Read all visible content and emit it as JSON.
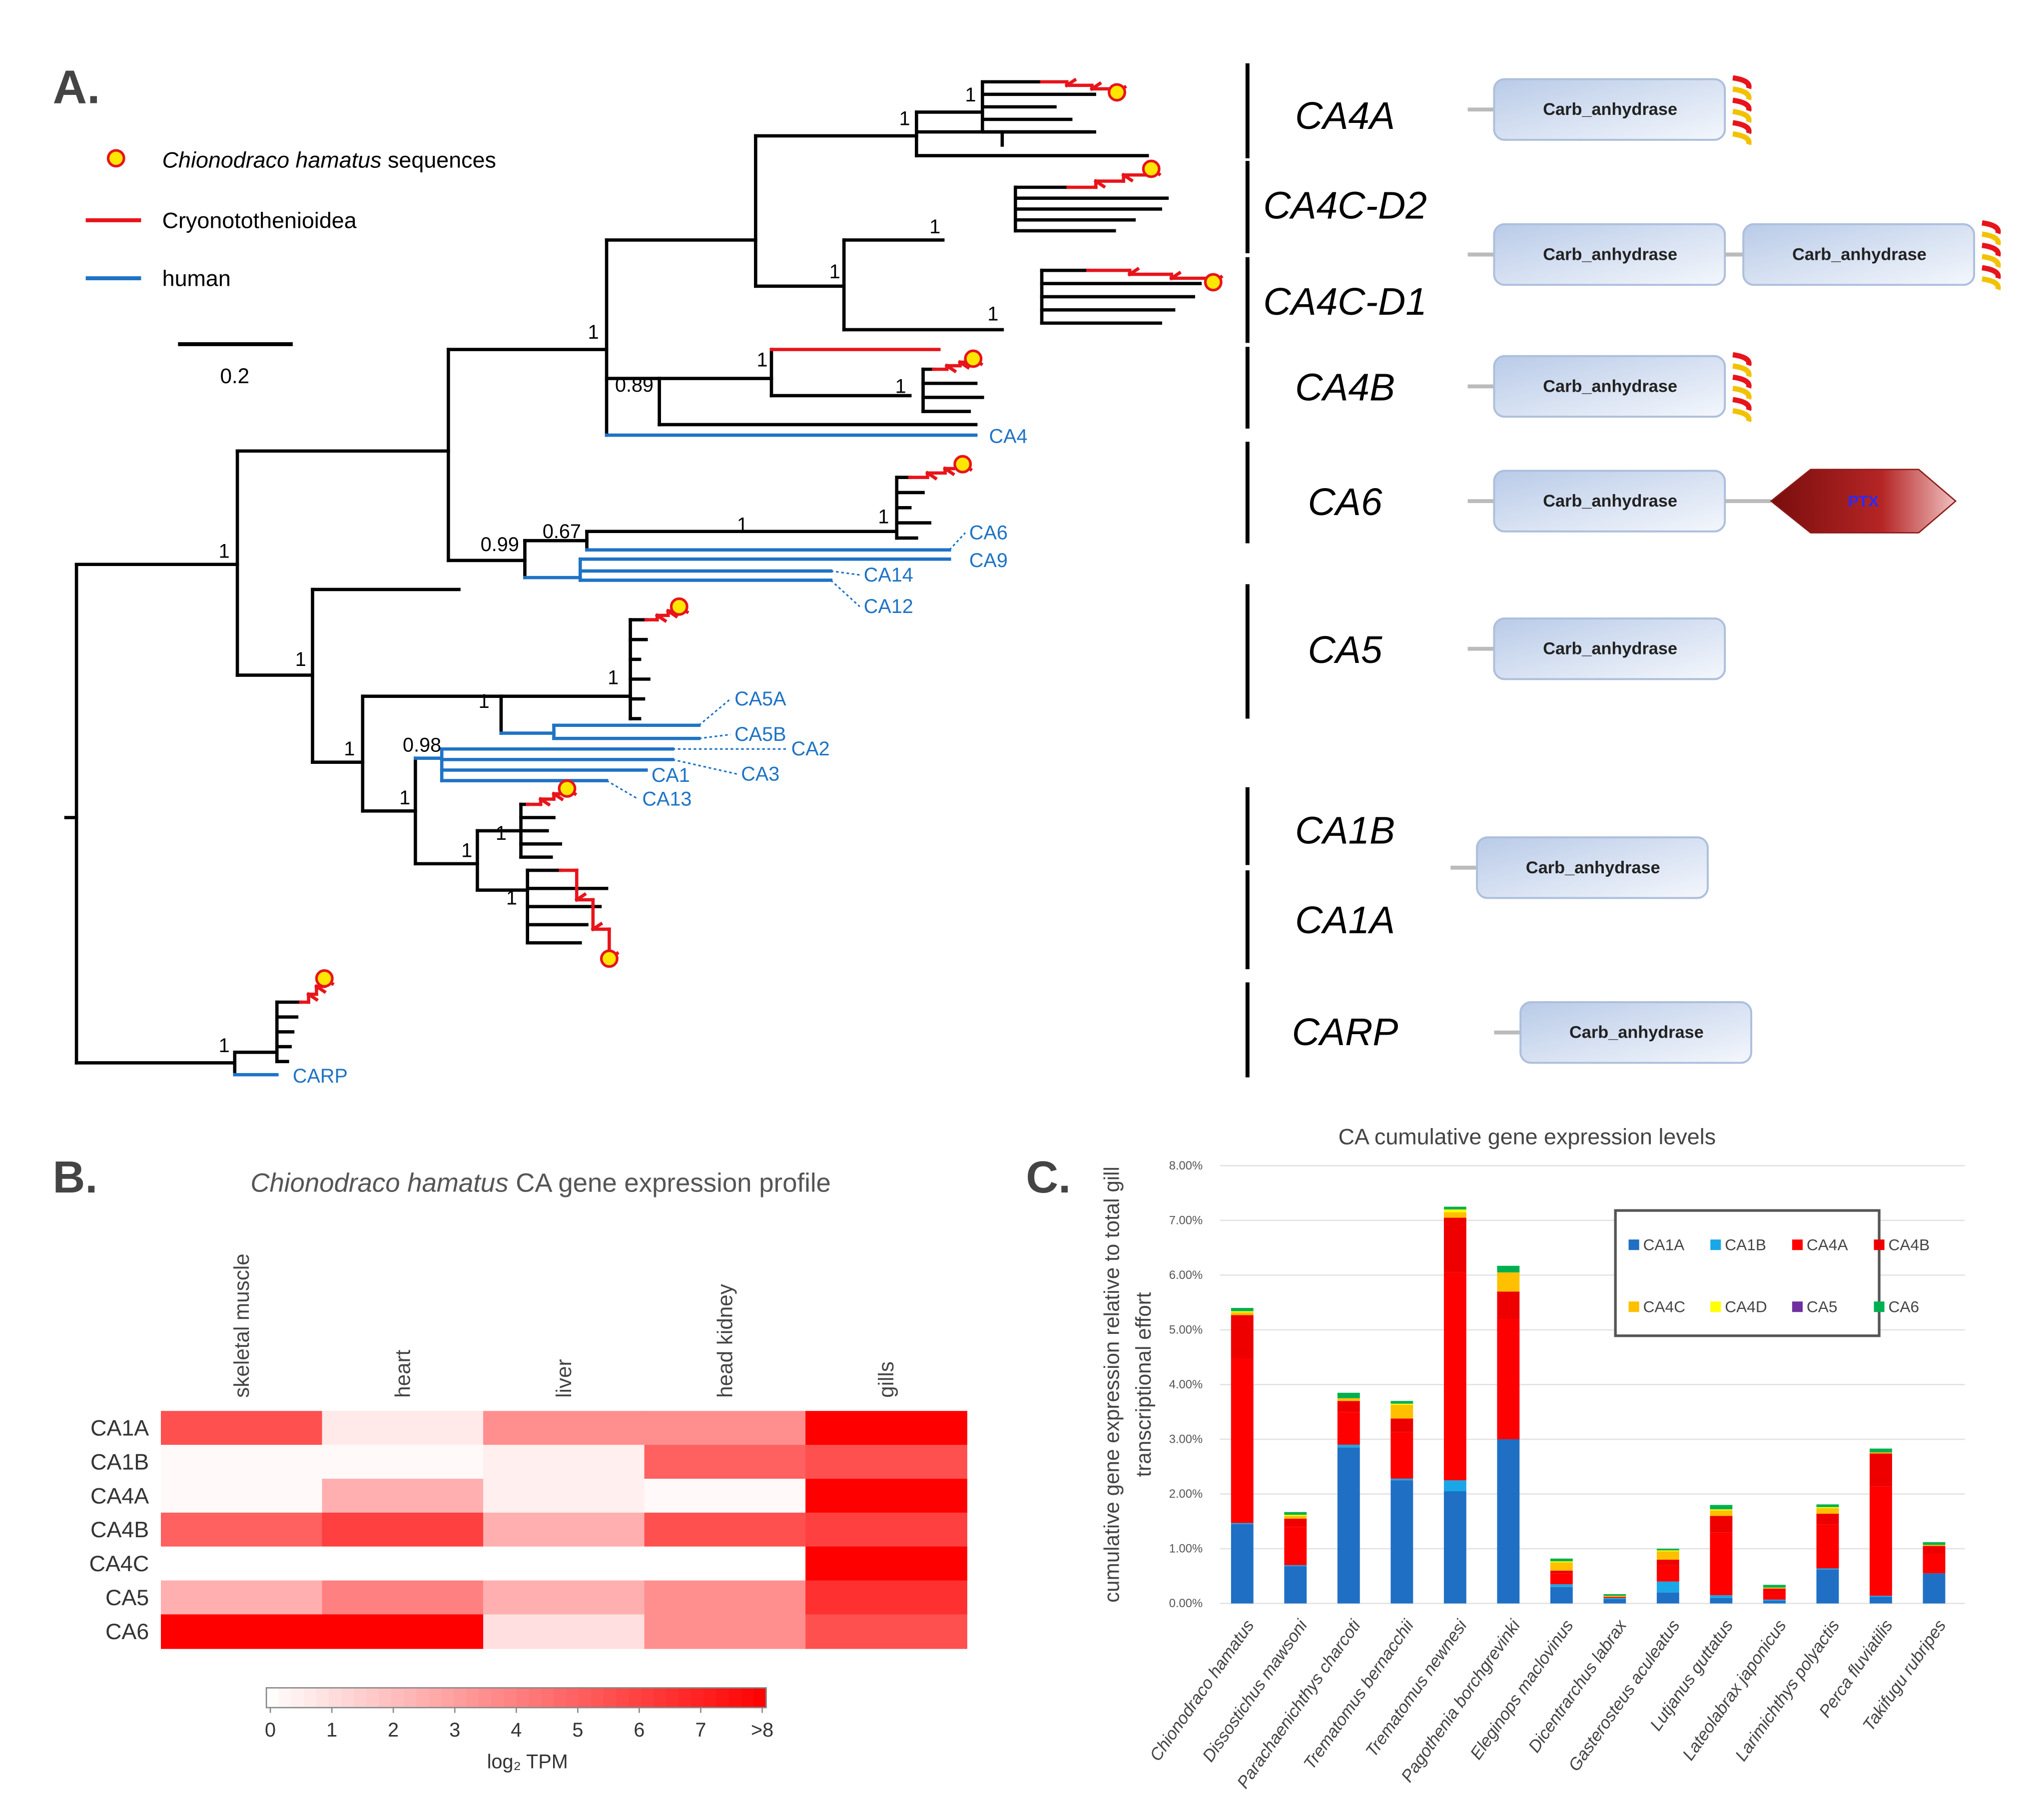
{
  "panel_a": {
    "label": "A.",
    "legend": {
      "species": "Chionodraco hamatus",
      "species_suffix": " sequences",
      "cryo": "Cryonotothenioidea",
      "human": "human"
    },
    "scale_label": "0.2",
    "colors": {
      "cryo": "#e8141b",
      "human": "#1e73c5",
      "dot": "#ffe600"
    },
    "supports": [
      1,
      1,
      1,
      0.89,
      1,
      1,
      1,
      1,
      1,
      1,
      1,
      0.99,
      0.67,
      1,
      1,
      1,
      1,
      1,
      0.98,
      1,
      1,
      1,
      1,
      1
    ],
    "human_leaves": [
      "CA4",
      "CA6",
      "CA9",
      "CA14",
      "CA12",
      "CA5A",
      "CA5B",
      "CA2",
      "CA3",
      "CA1",
      "CA13",
      "CARP"
    ],
    "clades": [
      "CA4A",
      "CA4C-D2",
      "CA4C-D1",
      "CA4B",
      "CA6",
      "CA5",
      "CA1B",
      "CA1A",
      "CARP"
    ],
    "architectures": [
      {
        "domains": [
          "Carb_anhydrase"
        ]
      },
      {
        "domains": [
          "Carb_anhydrase",
          "Carb_anhydrase"
        ]
      },
      {
        "domains": [
          "Carb_anhydrase"
        ]
      },
      {
        "domains": [
          "Carb_anhydrase",
          "PTX"
        ]
      },
      {
        "domains": [
          "Carb_anhydrase"
        ]
      },
      {
        "domains": [
          "Carb_anhydrase"
        ]
      },
      {
        "domains": [
          "Carb_anhydrase"
        ]
      }
    ]
  },
  "chart_data": [
    {
      "type": "heatmap",
      "label": "B.",
      "title_species": "Chionodraco hamatus",
      "title": " CA gene expression profile",
      "columns": [
        "skeletal muscle",
        "heart",
        "liver",
        "head kidney",
        "gills"
      ],
      "rows": [
        "CA1A",
        "CA1B",
        "CA4A",
        "CA4B",
        "CA4C",
        "CA5",
        "CA6"
      ],
      "values": [
        [
          5.5,
          0.7,
          3.5,
          3.5,
          8
        ],
        [
          0.2,
          0.2,
          0.5,
          5,
          5.5
        ],
        [
          0.2,
          2.5,
          0.5,
          0.2,
          8
        ],
        [
          5,
          6,
          2.5,
          5.5,
          6
        ],
        [
          0,
          0,
          0,
          0,
          8
        ],
        [
          2.5,
          4,
          2.5,
          3.5,
          6.5
        ],
        [
          8,
          8,
          1,
          3.5,
          5.5
        ]
      ],
      "clim": [
        0,
        8
      ],
      "cticks": [
        0,
        1,
        2,
        3,
        4,
        5,
        6,
        7,
        {
          "value": 8,
          "label": ">8"
        }
      ],
      "cmap": [
        "#ffffff",
        "#ff0000"
      ],
      "colorbar_label": "log₂ TPM"
    },
    {
      "type": "bar",
      "stacked": true,
      "label": "C.",
      "title": "CA cumulative gene expression levels",
      "ylabel": [
        "cumulative gene expression relative to total gill",
        "transcriptional effort"
      ],
      "categories": [
        "Chionodraco hamatus",
        "Dissostichus mawsoni",
        "Parachaenichthys charcoti",
        "Trematomus bernacchii",
        "Trematomus newnesi",
        "Pagothenia borchgrevinki",
        "Eleginops maclovinus",
        "Dicentrarchus labrax",
        "Gasterosteus aculeatus",
        "Lutjanus guttatus",
        "Lateolabrax japonicus",
        "Larimichthys polyactis",
        "Perca fluviatilis",
        "Takifugu rubripes"
      ],
      "series": [
        {
          "name": "CA1A",
          "color": "#1f6fc5",
          "values": [
            1.45,
            0.68,
            2.85,
            2.25,
            2.05,
            3.0,
            0.3,
            0.08,
            0.2,
            0.1,
            0.05,
            0.62,
            0.12,
            0.55
          ]
        },
        {
          "name": "CA1B",
          "color": "#1aa7e8",
          "values": [
            0.02,
            0.02,
            0.05,
            0.03,
            0.2,
            0,
            0.05,
            0.02,
            0.2,
            0.05,
            0.02,
            0.02,
            0.02,
            0
          ]
        },
        {
          "name": "CA4A",
          "color": "#ff0000",
          "values": [
            3.0,
            0.7,
            0.6,
            0.85,
            3.8,
            2.2,
            0.2,
            0.02,
            0.3,
            1.15,
            0.15,
            0.8,
            2.0,
            0.35
          ]
        },
        {
          "name": "CA4B",
          "color": "#ee0000",
          "values": [
            0.8,
            0.15,
            0.2,
            0.25,
            1.0,
            0.5,
            0.05,
            0,
            0.1,
            0.3,
            0.05,
            0.2,
            0.6,
            0.15
          ]
        },
        {
          "name": "CA4C",
          "color": "#ffc000",
          "values": [
            0.05,
            0.05,
            0.05,
            0.25,
            0.1,
            0.35,
            0.15,
            0.02,
            0.15,
            0.1,
            0.02,
            0.1,
            0.02,
            0.02
          ]
        },
        {
          "name": "CA4D",
          "color": "#ffff00",
          "values": [
            0.02,
            0.02,
            0,
            0.02,
            0.05,
            0,
            0.02,
            0,
            0.02,
            0.02,
            0,
            0.02,
            0,
            0
          ]
        },
        {
          "name": "CA5",
          "color": "#7030a0",
          "values": [
            0,
            0,
            0,
            0,
            0,
            0,
            0,
            0,
            0,
            0,
            0,
            0,
            0,
            0
          ]
        },
        {
          "name": "CA6",
          "color": "#00b050",
          "values": [
            0.06,
            0.05,
            0.1,
            0.05,
            0.05,
            0.12,
            0.05,
            0.03,
            0.03,
            0.08,
            0.05,
            0.05,
            0.07,
            0.05
          ]
        }
      ],
      "ylim": [
        0,
        8
      ],
      "yticks": [
        {
          "value": 0,
          "label": "0.00%"
        },
        {
          "value": 1,
          "label": "1.00%"
        },
        {
          "value": 2,
          "label": "2.00%"
        },
        {
          "value": 3,
          "label": "3.00%"
        },
        {
          "value": 4,
          "label": "4.00%"
        },
        {
          "value": 5,
          "label": "5.00%"
        },
        {
          "value": 6,
          "label": "6.00%"
        },
        {
          "value": 7,
          "label": "7.00%"
        },
        {
          "value": 8,
          "label": "8.00%"
        }
      ],
      "grid": true,
      "legend": "upper right"
    }
  ]
}
